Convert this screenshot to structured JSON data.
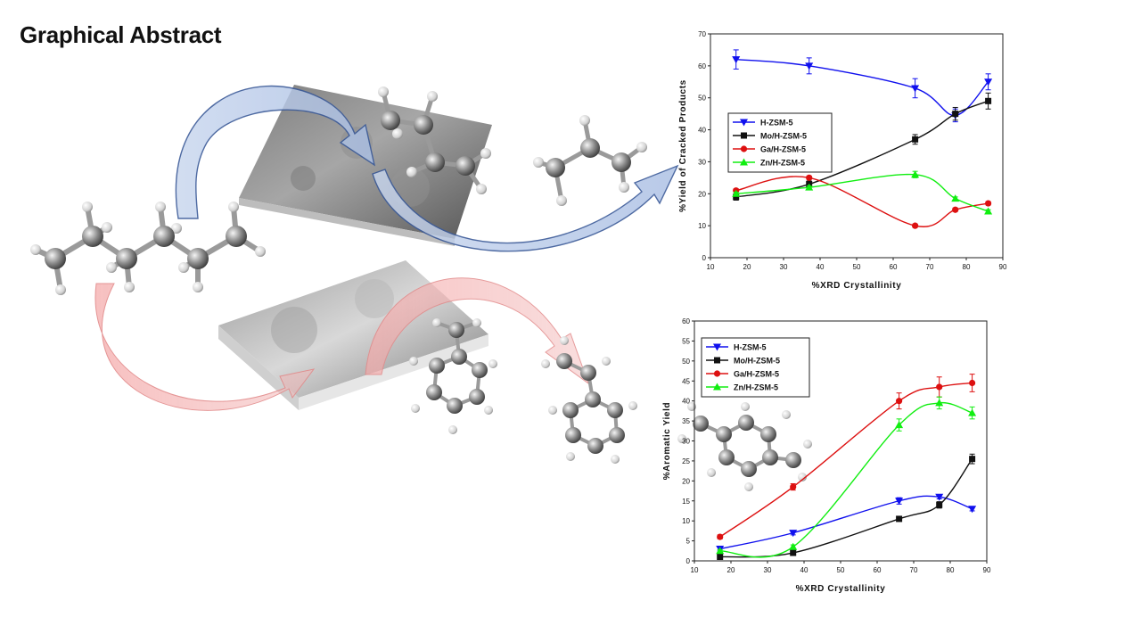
{
  "page": {
    "title": "Graphical Abstract"
  },
  "series_colors": {
    "H-ZSM-5": "#1010ee",
    "Mo/H-ZSM-5": "#111111",
    "Ga/H-ZSM-5": "#dd1010",
    "Zn/H-ZSM-5": "#11ee11"
  },
  "chart_data": [
    {
      "type": "line",
      "xlabel": "%XRD Crystallinity",
      "ylabel": "%Yield of Cracked Products",
      "xlim": [
        10,
        90
      ],
      "ylim": [
        0,
        70
      ],
      "xticks": [
        10,
        20,
        30,
        40,
        50,
        60,
        70,
        80,
        90
      ],
      "yticks": [
        0,
        10,
        20,
        30,
        40,
        50,
        60,
        70
      ],
      "x": [
        17,
        37,
        66,
        77,
        86
      ],
      "legend_position": "middle-left",
      "grid": false,
      "series": [
        {
          "name": "H-ZSM-5",
          "marker": "triangle-down",
          "values": [
            62,
            60,
            53,
            44.5,
            55
          ],
          "error": [
            3,
            2.5,
            3,
            2,
            2.5
          ]
        },
        {
          "name": "Mo/H-ZSM-5",
          "marker": "square",
          "values": [
            19,
            23,
            37,
            45,
            49
          ],
          "error": [
            1,
            1,
            1.5,
            2,
            2.5
          ]
        },
        {
          "name": "Ga/H-ZSM-5",
          "marker": "circle",
          "values": [
            21,
            25,
            10,
            15,
            17
          ],
          "error": [
            0.5,
            0.5,
            0.5,
            0.5,
            0.5
          ]
        },
        {
          "name": "Zn/H-ZSM-5",
          "marker": "triangle-up",
          "values": [
            20,
            22,
            26,
            18.5,
            14.5
          ],
          "error": [
            0.5,
            0.5,
            1,
            0.5,
            0.5
          ]
        }
      ]
    },
    {
      "type": "line",
      "xlabel": "%XRD Crystallinity",
      "ylabel": "%Aromatic Yield",
      "xlim": [
        10,
        90
      ],
      "ylim": [
        0,
        60
      ],
      "xticks": [
        10,
        20,
        30,
        40,
        50,
        60,
        70,
        80,
        90
      ],
      "yticks": [
        0,
        5,
        10,
        15,
        20,
        25,
        30,
        35,
        40,
        45,
        50,
        55,
        60
      ],
      "x": [
        17,
        37,
        66,
        77,
        86
      ],
      "legend_position": "top-left",
      "grid": false,
      "series": [
        {
          "name": "H-ZSM-5",
          "marker": "triangle-down",
          "values": [
            3,
            7,
            15,
            16,
            13
          ],
          "error": [
            0.5,
            0.5,
            0.8,
            0.5,
            0.5
          ]
        },
        {
          "name": "Mo/H-ZSM-5",
          "marker": "square",
          "values": [
            1,
            2,
            10.5,
            14,
            25.5
          ],
          "error": [
            0.3,
            0.3,
            0.5,
            0.8,
            1.2
          ]
        },
        {
          "name": "Ga/H-ZSM-5",
          "marker": "circle",
          "values": [
            6,
            18.5,
            40,
            43.5,
            44.5
          ],
          "error": [
            0.5,
            0.8,
            2,
            2.5,
            2.2
          ]
        },
        {
          "name": "Zn/H-ZSM-5",
          "marker": "triangle-up",
          "values": [
            2.5,
            3.5,
            34,
            39.5,
            37
          ],
          "error": [
            0.3,
            0.5,
            1.5,
            1.5,
            1.5
          ]
        }
      ]
    }
  ]
}
